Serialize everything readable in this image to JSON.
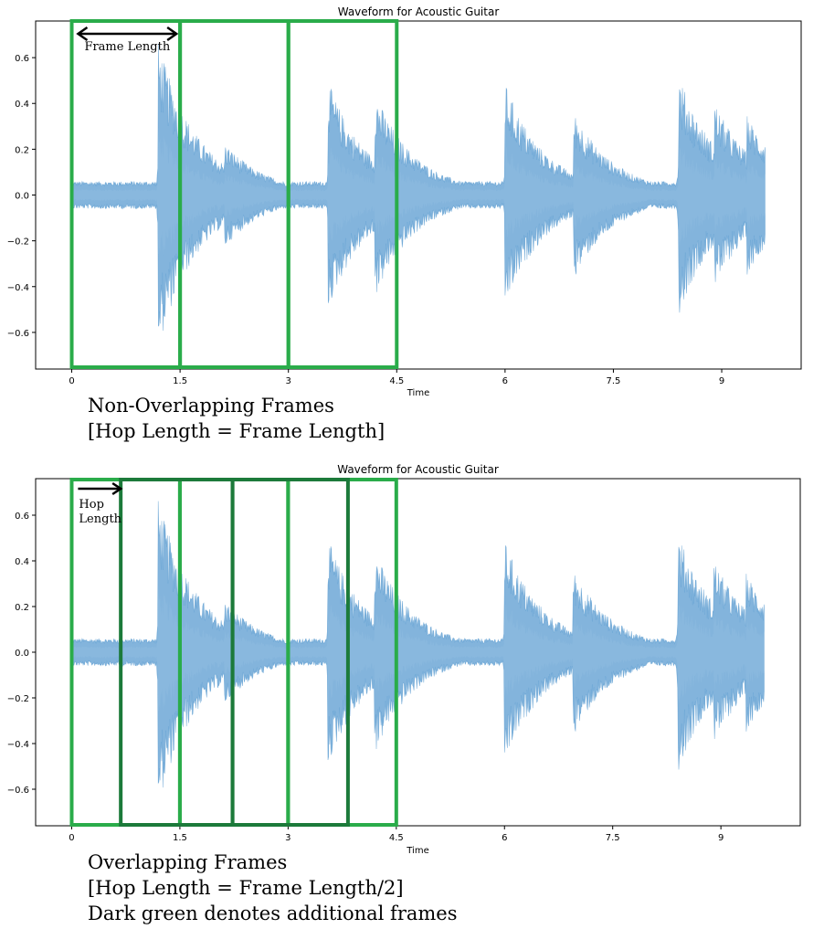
{
  "chart_data": [
    {
      "type": "line",
      "title": "Waveform for Acoustic Guitar",
      "xlabel": "Time",
      "ylabel": "",
      "x_ticks": [
        0,
        1.5,
        3,
        4.5,
        6,
        7.5,
        9
      ],
      "x_tick_labels": [
        "0",
        "1.5",
        "3",
        "4.5",
        "6",
        "7.5",
        "9"
      ],
      "y_ticks": [
        -0.6,
        -0.4,
        -0.2,
        0.0,
        0.2,
        0.4,
        0.6
      ],
      "y_tick_labels": [
        "−0.6",
        "−0.4",
        "−0.2",
        "0.0",
        "0.2",
        "0.4",
        "0.6"
      ],
      "xlim": [
        -0.5,
        10.1
      ],
      "ylim": [
        -0.76,
        0.76
      ],
      "grid": false,
      "series": [
        {
          "color": "#5a9bd0",
          "onsets": [
            {
              "t": 1.2,
              "amp": 0.66
            },
            {
              "t": 1.68,
              "amp": 0.27
            },
            {
              "t": 2.12,
              "amp": 0.22
            },
            {
              "t": 3.55,
              "amp": 0.49
            },
            {
              "t": 4.2,
              "amp": 0.44
            },
            {
              "t": 6.0,
              "amp": 0.48
            },
            {
              "t": 6.95,
              "amp": 0.36
            },
            {
              "t": 8.4,
              "amp": 0.52
            },
            {
              "t": 8.9,
              "amp": 0.4
            },
            {
              "t": 9.35,
              "amp": 0.34
            }
          ],
          "baseline_amp": 0.05,
          "duration": 9.6
        }
      ],
      "frames": [
        {
          "start": 0,
          "end": 1.5,
          "color": "#2aac4a"
        },
        {
          "start": 1.5,
          "end": 3.0,
          "color": "#2aac4a"
        },
        {
          "start": 3.0,
          "end": 4.5,
          "color": "#2aac4a"
        }
      ],
      "annotation": {
        "text": "Frame Length",
        "from": 0.05,
        "to": 1.45
      },
      "caption": [
        "Non-Overlapping Frames",
        "[Hop Length = Frame Length]"
      ]
    },
    {
      "type": "line",
      "title": "Waveform for Acoustic Guitar",
      "xlabel": "Time",
      "ylabel": "",
      "x_ticks": [
        0,
        1.5,
        3,
        4.5,
        6,
        7.5,
        9
      ],
      "x_tick_labels": [
        "0",
        "1.5",
        "3",
        "4.5",
        "6",
        "7.5",
        "9"
      ],
      "y_ticks": [
        -0.6,
        -0.4,
        -0.2,
        0.0,
        0.2,
        0.4,
        0.6
      ],
      "y_tick_labels": [
        "−0.6",
        "−0.4",
        "−0.2",
        "0.0",
        "0.2",
        "0.4",
        "0.6"
      ],
      "xlim": [
        -0.5,
        10.1
      ],
      "ylim": [
        -0.76,
        0.76
      ],
      "grid": false,
      "series": [
        {
          "color": "#5a9bd0",
          "onsets": [
            {
              "t": 1.2,
              "amp": 0.66
            },
            {
              "t": 1.68,
              "amp": 0.27
            },
            {
              "t": 2.12,
              "amp": 0.22
            },
            {
              "t": 3.55,
              "amp": 0.49
            },
            {
              "t": 4.2,
              "amp": 0.44
            },
            {
              "t": 6.0,
              "amp": 0.48
            },
            {
              "t": 6.95,
              "amp": 0.36
            },
            {
              "t": 8.4,
              "amp": 0.52
            },
            {
              "t": 8.9,
              "amp": 0.4
            },
            {
              "t": 9.35,
              "amp": 0.34
            }
          ],
          "baseline_amp": 0.05,
          "duration": 9.6
        }
      ],
      "frames": [
        {
          "start": 0,
          "end": 1.5,
          "color": "#2aac4a"
        },
        {
          "start": 1.5,
          "end": 3.0,
          "color": "#2aac4a"
        },
        {
          "start": 3.0,
          "end": 4.5,
          "color": "#2aac4a"
        },
        {
          "start": 0.68,
          "end": 2.23,
          "color": "#1c7a3a"
        },
        {
          "start": 2.23,
          "end": 3.83,
          "color": "#1c7a3a"
        }
      ],
      "annotation": {
        "text": "Hop Length",
        "lines": [
          "Hop",
          "Length"
        ],
        "from": 0.05,
        "to": 0.68
      },
      "caption": [
        "Overlapping Frames",
        "[Hop Length = Frame Length/2]",
        "Dark green denotes additional frames"
      ]
    }
  ]
}
